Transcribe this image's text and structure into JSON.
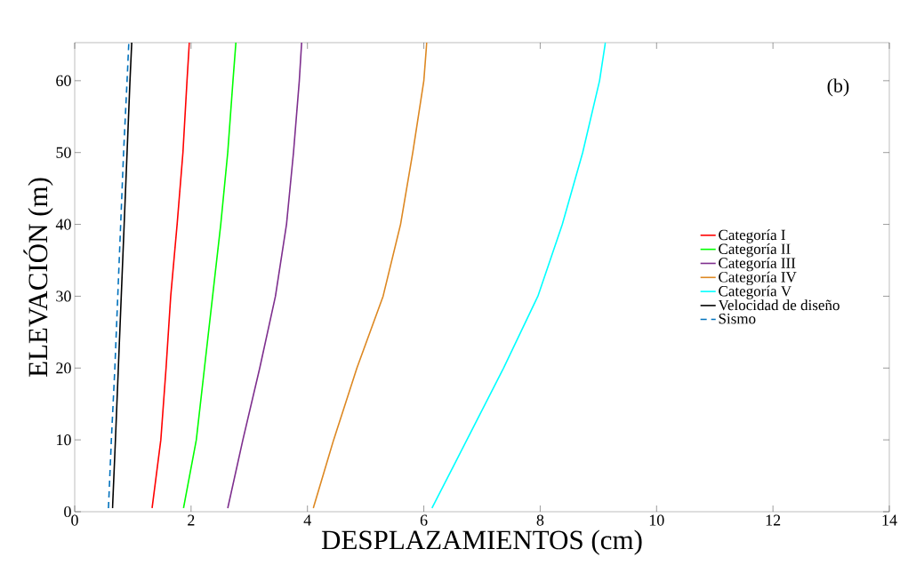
{
  "chart_data": {
    "type": "line",
    "xlabel": "DESPLAZAMIENTOS (cm)",
    "ylabel": "ELEVACIÓN (m)",
    "xlim": [
      0,
      14
    ],
    "ylim": [
      0,
      65.3
    ],
    "xticks": [
      0,
      2,
      4,
      6,
      8,
      10,
      12,
      14
    ],
    "yticks": [
      0,
      10,
      20,
      30,
      40,
      50,
      60
    ],
    "grid": false,
    "legend": "right",
    "marker": "none",
    "annotations": [
      "(b)"
    ],
    "series": [
      {
        "name": "Categoría I",
        "color": "#ff0000",
        "x": [
          1.33,
          1.48,
          1.57,
          1.65,
          1.76,
          1.86,
          1.93,
          1.97
        ],
        "values": [
          0.5,
          10,
          20,
          30,
          40,
          50,
          60,
          65.3
        ]
      },
      {
        "name": "Categoría II",
        "color": "#00ff00",
        "x": [
          1.87,
          2.09,
          2.23,
          2.37,
          2.51,
          2.63,
          2.72,
          2.77
        ],
        "values": [
          0.5,
          10,
          20,
          30,
          40,
          50,
          60,
          65.3
        ]
      },
      {
        "name": "Categoría III",
        "color": "#7e2f8e",
        "x": [
          2.63,
          2.89,
          3.18,
          3.45,
          3.64,
          3.76,
          3.86,
          3.9
        ],
        "values": [
          0.5,
          10,
          20,
          30,
          40,
          50,
          60,
          65.3
        ]
      },
      {
        "name": "Categoría IV",
        "color": "#dd8822",
        "x": [
          4.1,
          4.45,
          4.85,
          5.3,
          5.6,
          5.81,
          6.0,
          6.05
        ],
        "values": [
          0.5,
          10,
          20,
          30,
          40,
          50,
          60,
          65.3
        ]
      },
      {
        "name": "Categoría V",
        "color": "#00ffff",
        "x": [
          6.14,
          6.74,
          7.37,
          7.96,
          8.38,
          8.73,
          9.02,
          9.12
        ],
        "values": [
          0.5,
          10,
          20,
          30,
          40,
          50,
          60,
          65.3
        ]
      },
      {
        "name": "Velocidad de diseño",
        "color": "#000000",
        "x": [
          0.65,
          0.7,
          0.75,
          0.8,
          0.85,
          0.9,
          0.95,
          0.98
        ],
        "values": [
          0.5,
          10,
          20,
          30,
          40,
          50,
          60,
          65.3
        ]
      },
      {
        "name": "Sismo",
        "color": "#0072bd",
        "line_style": "dashed",
        "x": [
          0.58,
          0.63,
          0.69,
          0.74,
          0.79,
          0.84,
          0.9,
          0.93
        ],
        "values": [
          0.5,
          10,
          20,
          30,
          40,
          50,
          60,
          65.3
        ]
      }
    ]
  }
}
